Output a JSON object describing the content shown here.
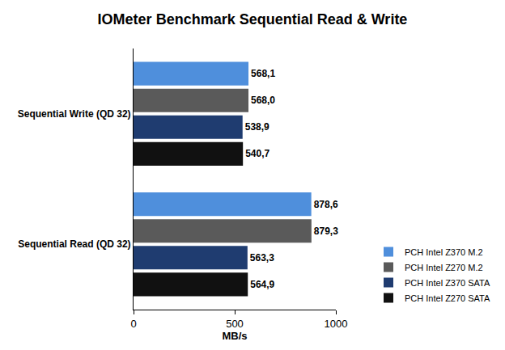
{
  "chart_data": {
    "type": "bar",
    "orientation": "horizontal",
    "title": "IOMeter Benchmark Sequential Read & Write",
    "x_label": "MB/s",
    "categories": [
      "Sequential Write (QD 32)",
      "Sequential Read (QD 32)"
    ],
    "series": [
      {
        "name": "PCH Intel Z370 M.2",
        "color": "#4f8fdc",
        "values": [
          568.1,
          878.6
        ],
        "value_labels": [
          "568,1",
          "878,6"
        ]
      },
      {
        "name": "PCH Intel Z270 M.2",
        "color": "#5a5a5a",
        "values": [
          568.0,
          879.3
        ],
        "value_labels": [
          "568,0",
          "879,3"
        ]
      },
      {
        "name": "PCH Intel Z370 SATA",
        "color": "#1f3c70",
        "values": [
          538.9,
          563.3
        ],
        "value_labels": [
          "538,9",
          "563,3"
        ]
      },
      {
        "name": "PCH Intel Z270 SATA",
        "color": "#111111",
        "values": [
          540.7,
          564.9
        ],
        "value_labels": [
          "540,7",
          "564,9"
        ]
      }
    ],
    "xlim": [
      0,
      1000
    ],
    "xticks": [
      0,
      500,
      1000
    ],
    "grid": false,
    "data_labels": true,
    "legend": "bottom right"
  }
}
